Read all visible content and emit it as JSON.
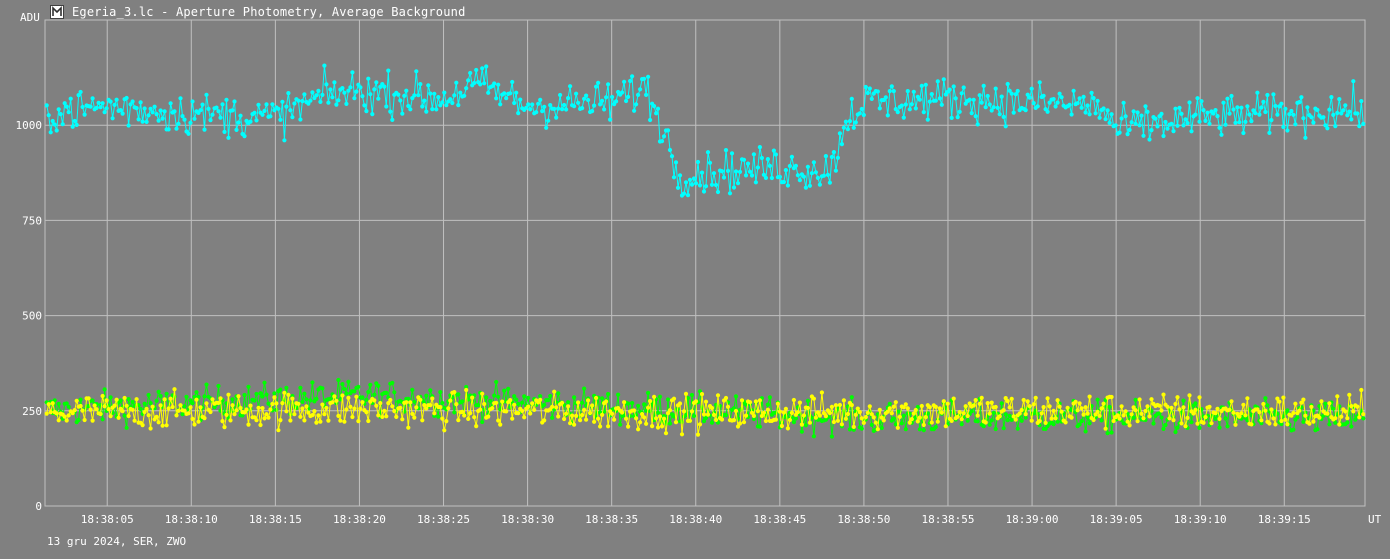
{
  "window": {
    "title": "Egeria_3.lc - Aperture Photometry, Average Background"
  },
  "footer": {
    "text": "13 gru 2024, SER, ZWO"
  },
  "colors": {
    "background": "#808080",
    "grid": "#c0c0c0",
    "target": "#00ffff",
    "comp1": "#ffff00",
    "comp2": "#00ff00"
  },
  "chart_data": {
    "type": "line",
    "ylabel": "ADU",
    "xlabel": "UT",
    "ylim": [
      0,
      1250
    ],
    "yticks": [
      0,
      250,
      500,
      750,
      1000
    ],
    "xticks": [
      "18:38:05",
      "18:38:10",
      "18:38:15",
      "18:38:20",
      "18:38:25",
      "18:38:30",
      "18:38:35",
      "18:38:40",
      "18:38:45",
      "18:38:50",
      "18:38:55",
      "18:39:00",
      "18:39:05",
      "18:39:10",
      "18:39:15"
    ],
    "xlim_seconds": [
      0,
      78
    ],
    "series": [
      {
        "color": "#00ffff",
        "approximate_profile": [
          {
            "t": "18:38:01",
            "adu": 1030
          },
          {
            "t": "18:38:05",
            "adu": 1050
          },
          {
            "t": "18:38:10",
            "adu": 1030
          },
          {
            "t": "18:38:15",
            "adu": 1020
          },
          {
            "t": "18:38:18",
            "adu": 1080
          },
          {
            "t": "18:38:20",
            "adu": 1090
          },
          {
            "t": "18:38:25",
            "adu": 1070
          },
          {
            "t": "18:38:27",
            "adu": 1110
          },
          {
            "t": "18:38:30",
            "adu": 1050
          },
          {
            "t": "18:38:35",
            "adu": 1060
          },
          {
            "t": "18:38:37",
            "adu": 1100
          },
          {
            "t": "18:38:38",
            "adu": 1000
          },
          {
            "t": "18:38:39",
            "adu": 870
          },
          {
            "t": "18:38:42",
            "adu": 880
          },
          {
            "t": "18:38:45",
            "adu": 890
          },
          {
            "t": "18:38:48",
            "adu": 880
          },
          {
            "t": "18:38:49",
            "adu": 1020
          },
          {
            "t": "18:38:50",
            "adu": 1060
          },
          {
            "t": "18:38:55",
            "adu": 1070
          },
          {
            "t": "18:39:00",
            "adu": 1060
          },
          {
            "t": "18:39:04",
            "adu": 1050
          },
          {
            "t": "18:39:05",
            "adu": 990
          },
          {
            "t": "18:39:10",
            "adu": 1020
          },
          {
            "t": "18:39:15",
            "adu": 1030
          },
          {
            "t": "18:39:18",
            "adu": 1040
          }
        ],
        "scatter": 70
      },
      {
        "color": "#ffff00",
        "approximate_profile": [
          {
            "t": "18:38:01",
            "adu": 245
          },
          {
            "t": "18:38:20",
            "adu": 255
          },
          {
            "t": "18:38:40",
            "adu": 245
          },
          {
            "t": "18:39:00",
            "adu": 250
          },
          {
            "t": "18:39:18",
            "adu": 245
          }
        ],
        "scatter": 60
      },
      {
        "color": "#00ff00",
        "approximate_profile": [
          {
            "t": "18:38:01",
            "adu": 250
          },
          {
            "t": "18:38:20",
            "adu": 290
          },
          {
            "t": "18:38:30",
            "adu": 270
          },
          {
            "t": "18:38:40",
            "adu": 250
          },
          {
            "t": "18:38:50",
            "adu": 230
          },
          {
            "t": "18:39:00",
            "adu": 235
          },
          {
            "t": "18:39:18",
            "adu": 230
          }
        ],
        "scatter": 55
      }
    ]
  }
}
